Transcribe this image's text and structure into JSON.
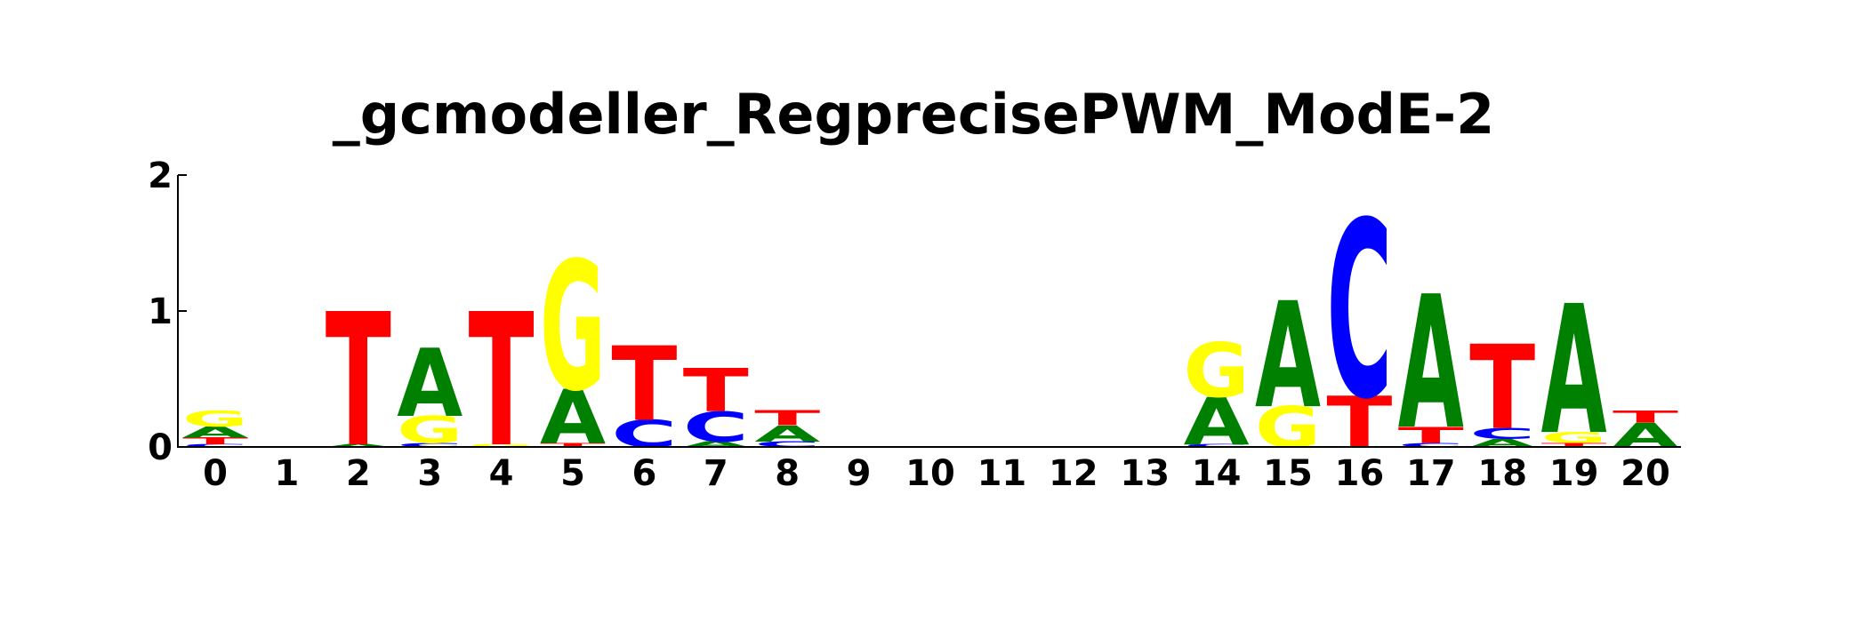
{
  "chart_data": {
    "type": "sequence-logo",
    "title": "_gcmodeller_RegprecisePWM_ModE-2",
    "ylim": [
      0,
      2
    ],
    "y_ticks": [
      "0",
      "1",
      "2"
    ],
    "x_ticks": [
      "0",
      "1",
      "2",
      "3",
      "4",
      "5",
      "6",
      "7",
      "8",
      "9",
      "10",
      "11",
      "12",
      "13",
      "14",
      "15",
      "16",
      "17",
      "18",
      "19",
      "20"
    ],
    "colors": {
      "A": "#008000",
      "C": "#0000ff",
      "G": "#ffff00",
      "T": "#ff0000"
    },
    "positions": [
      {
        "pos": 0,
        "stack": [
          [
            "C",
            0.02
          ],
          [
            "T",
            0.05
          ],
          [
            "A",
            0.08
          ],
          [
            "G",
            0.12
          ]
        ]
      },
      {
        "pos": 1,
        "stack": []
      },
      {
        "pos": 2,
        "stack": [
          [
            "A",
            0.02
          ],
          [
            "T",
            0.98
          ]
        ]
      },
      {
        "pos": 3,
        "stack": [
          [
            "C",
            0.03
          ],
          [
            "G",
            0.2
          ],
          [
            "A",
            0.5
          ]
        ]
      },
      {
        "pos": 4,
        "stack": [
          [
            "G",
            0.02
          ],
          [
            "T",
            0.98
          ]
        ]
      },
      {
        "pos": 5,
        "stack": [
          [
            "T",
            0.03
          ],
          [
            "A",
            0.4
          ],
          [
            "G",
            0.95
          ]
        ]
      },
      {
        "pos": 6,
        "stack": [
          [
            "C",
            0.2
          ],
          [
            "T",
            0.55
          ]
        ]
      },
      {
        "pos": 7,
        "stack": [
          [
            "A",
            0.04
          ],
          [
            "C",
            0.22
          ],
          [
            "T",
            0.32
          ]
        ]
      },
      {
        "pos": 8,
        "stack": [
          [
            "C",
            0.04
          ],
          [
            "A",
            0.12
          ],
          [
            "T",
            0.11
          ]
        ]
      },
      {
        "pos": 9,
        "stack": []
      },
      {
        "pos": 10,
        "stack": []
      },
      {
        "pos": 11,
        "stack": []
      },
      {
        "pos": 12,
        "stack": []
      },
      {
        "pos": 13,
        "stack": []
      },
      {
        "pos": 14,
        "stack": [
          [
            "C",
            0.02
          ],
          [
            "A",
            0.35
          ],
          [
            "G",
            0.4
          ]
        ]
      },
      {
        "pos": 15,
        "stack": [
          [
            "G",
            0.3
          ],
          [
            "A",
            0.78
          ]
        ]
      },
      {
        "pos": 16,
        "stack": [
          [
            "T",
            0.38
          ],
          [
            "C",
            1.3
          ]
        ]
      },
      {
        "pos": 17,
        "stack": [
          [
            "C",
            0.03
          ],
          [
            "T",
            0.12
          ],
          [
            "A",
            0.98
          ]
        ]
      },
      {
        "pos": 18,
        "stack": [
          [
            "A",
            0.06
          ],
          [
            "C",
            0.08
          ],
          [
            "T",
            0.62
          ]
        ]
      },
      {
        "pos": 19,
        "stack": [
          [
            "T",
            0.03
          ],
          [
            "G",
            0.08
          ],
          [
            "A",
            0.95
          ]
        ]
      },
      {
        "pos": 20,
        "stack": [
          [
            "A",
            0.18
          ],
          [
            "T",
            0.09
          ]
        ]
      }
    ]
  }
}
